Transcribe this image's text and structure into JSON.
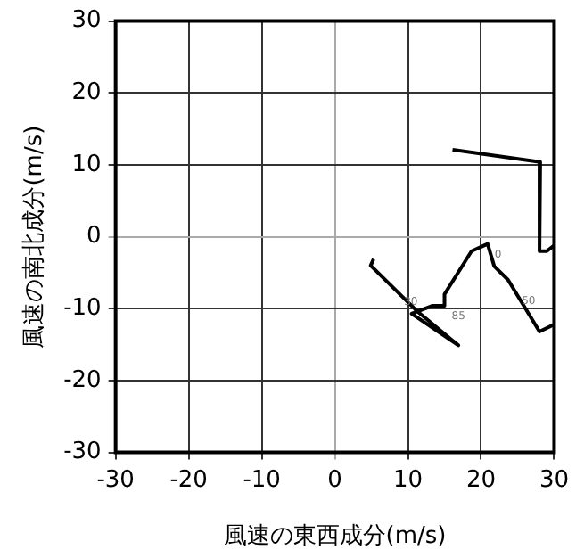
{
  "chart_data": {
    "type": "line",
    "xlabel": "風速の東西成分(m/s)",
    "ylabel": "風速の南北成分(m/s)",
    "series": [
      {
        "color": "#000000",
        "x": [
          16.1,
          28.1,
          28.0,
          29.0,
          30,
          null,
          30,
          28.0,
          23.7,
          21.8,
          20.9,
          18.7,
          15.0,
          15.0,
          13.3,
          10.5,
          16.9,
          11.2,
          4.9,
          5.3
        ],
        "values": [
          12.1,
          10.4,
          -2.0,
          -2.0,
          -1.2,
          null,
          -12.2,
          -13.2,
          -6.0,
          -4.1,
          -1.0,
          -2.0,
          -8.0,
          -9.6,
          -9.6,
          -10.7,
          -15.1,
          -10.3,
          -4.0,
          -3.1
        ]
      }
    ],
    "annotations": [
      {
        "text": "0",
        "x": 20.9,
        "y": -1.0
      },
      {
        "text": "50",
        "x": 24.6,
        "y": -7.5
      },
      {
        "text": "85",
        "x": 15.0,
        "y": -9.6
      },
      {
        "text": "30",
        "x": 8.5,
        "y": -7.6
      }
    ],
    "xlim": [
      -30,
      30
    ],
    "ylim": [
      -30,
      30
    ],
    "xticks": [
      -30,
      -20,
      -10,
      0,
      10,
      20,
      30
    ],
    "yticks": [
      -30,
      -20,
      -10,
      0,
      10,
      20,
      30
    ],
    "grid": true,
    "legend": false,
    "marker": "none"
  }
}
